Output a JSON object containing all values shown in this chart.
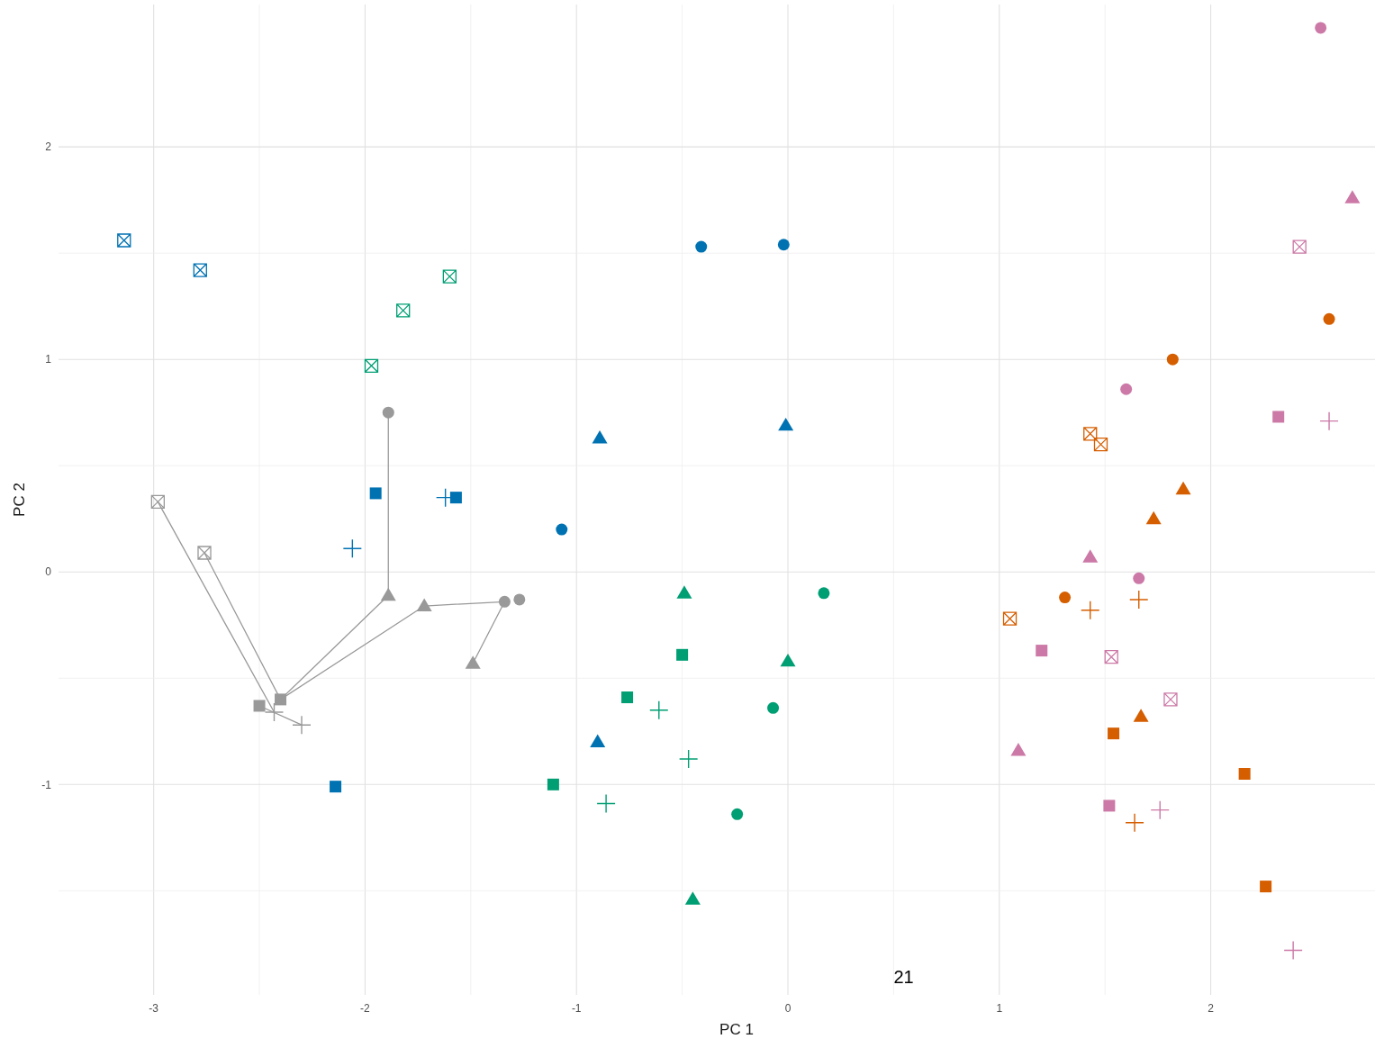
{
  "chart_data": {
    "type": "scatter",
    "xlabel": "PC 1",
    "ylabel": "PC 2",
    "annotations": [
      "21"
    ],
    "grid": true,
    "xlim": [
      -3.45,
      2.777
    ],
    "ylim": [
      -1.99,
      2.67
    ],
    "xticks": [
      -3,
      {
        "value": -2.5,
        "label": null
      },
      -2,
      {
        "value": -1.5,
        "label": null
      },
      -1,
      {
        "value": -0.5,
        "label": null
      },
      0,
      {
        "value": 0.5,
        "label": null
      },
      1,
      {
        "value": 1.5,
        "label": null
      },
      2
    ],
    "yticks": [
      {
        "value": -1.5,
        "label": null
      },
      -1,
      {
        "value": -0.5,
        "label": null
      },
      0,
      {
        "value": 0.5,
        "label": null
      },
      1,
      {
        "value": 1.5,
        "label": null
      },
      2
    ],
    "series": [
      {
        "type": "line",
        "color": "#999999",
        "marker": "none",
        "x": [
          -2.98,
          -2.43
        ],
        "values": [
          0.33,
          -0.66
        ]
      },
      {
        "type": "line",
        "color": "#999999",
        "marker": "none",
        "x": [
          -2.76,
          -2.4
        ],
        "values": [
          0.09,
          -0.6
        ]
      },
      {
        "type": "line",
        "color": "#999999",
        "marker": "none",
        "x": [
          -2.5,
          -2.3
        ],
        "values": [
          -0.63,
          -0.72
        ]
      },
      {
        "type": "line",
        "color": "#999999",
        "marker": "none",
        "x": [
          -2.4,
          -1.89
        ],
        "values": [
          -0.6,
          -0.11
        ]
      },
      {
        "type": "line",
        "color": "#999999",
        "marker": "none",
        "x": [
          -2.4,
          -1.72
        ],
        "values": [
          -0.6,
          -0.16
        ]
      },
      {
        "type": "line",
        "color": "#999999",
        "marker": "none",
        "x": [
          -1.89,
          -1.89
        ],
        "values": [
          0.75,
          -0.11
        ]
      },
      {
        "type": "line",
        "color": "#999999",
        "marker": "none",
        "x": [
          -1.72,
          -1.34
        ],
        "values": [
          -0.16,
          -0.14
        ]
      },
      {
        "type": "line",
        "color": "#999999",
        "marker": "none",
        "x": [
          -1.34,
          -1.49
        ],
        "values": [
          -0.14,
          -0.43
        ]
      },
      {
        "color": "#999999",
        "marker": "circle",
        "x": [
          -1.89,
          -1.34,
          -1.27
        ],
        "values": [
          0.75,
          -0.14,
          -0.13
        ]
      },
      {
        "color": "#999999",
        "marker": "triangle",
        "x": [
          -1.89,
          -1.72,
          -1.49
        ],
        "values": [
          -0.11,
          -0.16,
          -0.43
        ]
      },
      {
        "color": "#999999",
        "marker": "square",
        "x": [
          -2.5,
          -2.4
        ],
        "values": [
          -0.63,
          -0.6
        ]
      },
      {
        "color": "#999999",
        "marker": "cross",
        "x": [
          -2.43,
          -2.3
        ],
        "values": [
          -0.66,
          -0.72
        ]
      },
      {
        "color": "#999999",
        "x": [
          -2.98,
          -2.76
        ],
        "values": [
          0.33,
          0.09
        ]
      },
      {
        "color": "#0072b2",
        "marker": "circle",
        "x": [
          -0.41,
          -0.02,
          -1.07
        ],
        "values": [
          1.53,
          1.54,
          0.2
        ]
      },
      {
        "color": "#0072b2",
        "marker": "triangle",
        "x": [
          -0.89,
          -0.01,
          -0.9
        ],
        "values": [
          0.63,
          0.69,
          -0.8
        ]
      },
      {
        "color": "#0072b2",
        "marker": "cross",
        "x": [
          -2.06,
          -1.62
        ],
        "values": [
          0.11,
          0.35
        ]
      },
      {
        "color": "#0072b2",
        "marker": "square",
        "x": [
          -1.95,
          -1.57,
          -2.14
        ],
        "values": [
          0.37,
          0.35,
          -1.01
        ]
      },
      {
        "color": "#0072b2",
        "x": [
          -3.14,
          -2.78
        ],
        "values": [
          1.56,
          1.42
        ]
      },
      {
        "color": "#009e73",
        "marker": "circle",
        "x": [
          0.17,
          -0.07,
          -0.24
        ],
        "values": [
          -0.1,
          -0.64,
          -1.14
        ]
      },
      {
        "color": "#009e73",
        "marker": "triangle",
        "x": [
          -0.49,
          0.0,
          -0.45
        ],
        "values": [
          -0.1,
          -0.42,
          -1.54
        ]
      },
      {
        "color": "#009e73",
        "marker": "square",
        "x": [
          -0.5,
          -0.76,
          -1.11
        ],
        "values": [
          -0.39,
          -0.59,
          -1.0
        ]
      },
      {
        "color": "#009e73",
        "marker": "cross",
        "x": [
          -0.61,
          -0.47,
          -0.86
        ],
        "values": [
          -0.65,
          -0.88,
          -1.09
        ]
      },
      {
        "color": "#009e73",
        "x": [
          -1.6,
          -1.82,
          -1.97
        ],
        "values": [
          1.39,
          1.23,
          0.97
        ]
      },
      {
        "color": "#d55e00",
        "marker": "circle",
        "x": [
          2.56,
          1.82,
          1.31
        ],
        "values": [
          1.19,
          1.0,
          -0.12
        ]
      },
      {
        "color": "#d55e00",
        "marker": "triangle",
        "x": [
          1.87,
          1.73,
          1.67
        ],
        "values": [
          0.39,
          0.25,
          -0.68
        ]
      },
      {
        "color": "#d55e00",
        "marker": "square",
        "x": [
          1.54,
          2.16,
          2.26
        ],
        "values": [
          -0.76,
          -0.95,
          -1.48
        ]
      },
      {
        "color": "#d55e00",
        "marker": "cross",
        "x": [
          1.66,
          1.43,
          1.64
        ],
        "values": [
          -0.13,
          -0.18,
          -1.18
        ]
      },
      {
        "color": "#d55e00",
        "x": [
          1.48,
          1.43,
          1.05
        ],
        "values": [
          0.6,
          0.65,
          -0.22
        ]
      },
      {
        "color": "#cc79a7",
        "marker": "circle",
        "x": [
          2.52,
          1.6,
          1.66
        ],
        "values": [
          2.56,
          0.86,
          -0.03
        ]
      },
      {
        "color": "#cc79a7",
        "marker": "triangle",
        "x": [
          2.67,
          1.43,
          1.09
        ],
        "values": [
          1.76,
          0.07,
          -0.84
        ]
      },
      {
        "color": "#cc79a7",
        "marker": "square",
        "x": [
          2.32,
          1.2,
          1.52
        ],
        "values": [
          0.73,
          -0.37,
          -1.1
        ]
      },
      {
        "color": "#cc79a7",
        "marker": "cross",
        "x": [
          2.56,
          1.76,
          2.39
        ],
        "values": [
          0.71,
          -1.12,
          -1.78
        ]
      },
      {
        "color": "#cc79a7",
        "x": [
          2.42,
          1.53,
          1.81
        ],
        "values": [
          1.53,
          -0.4,
          -0.6
        ]
      }
    ]
  }
}
